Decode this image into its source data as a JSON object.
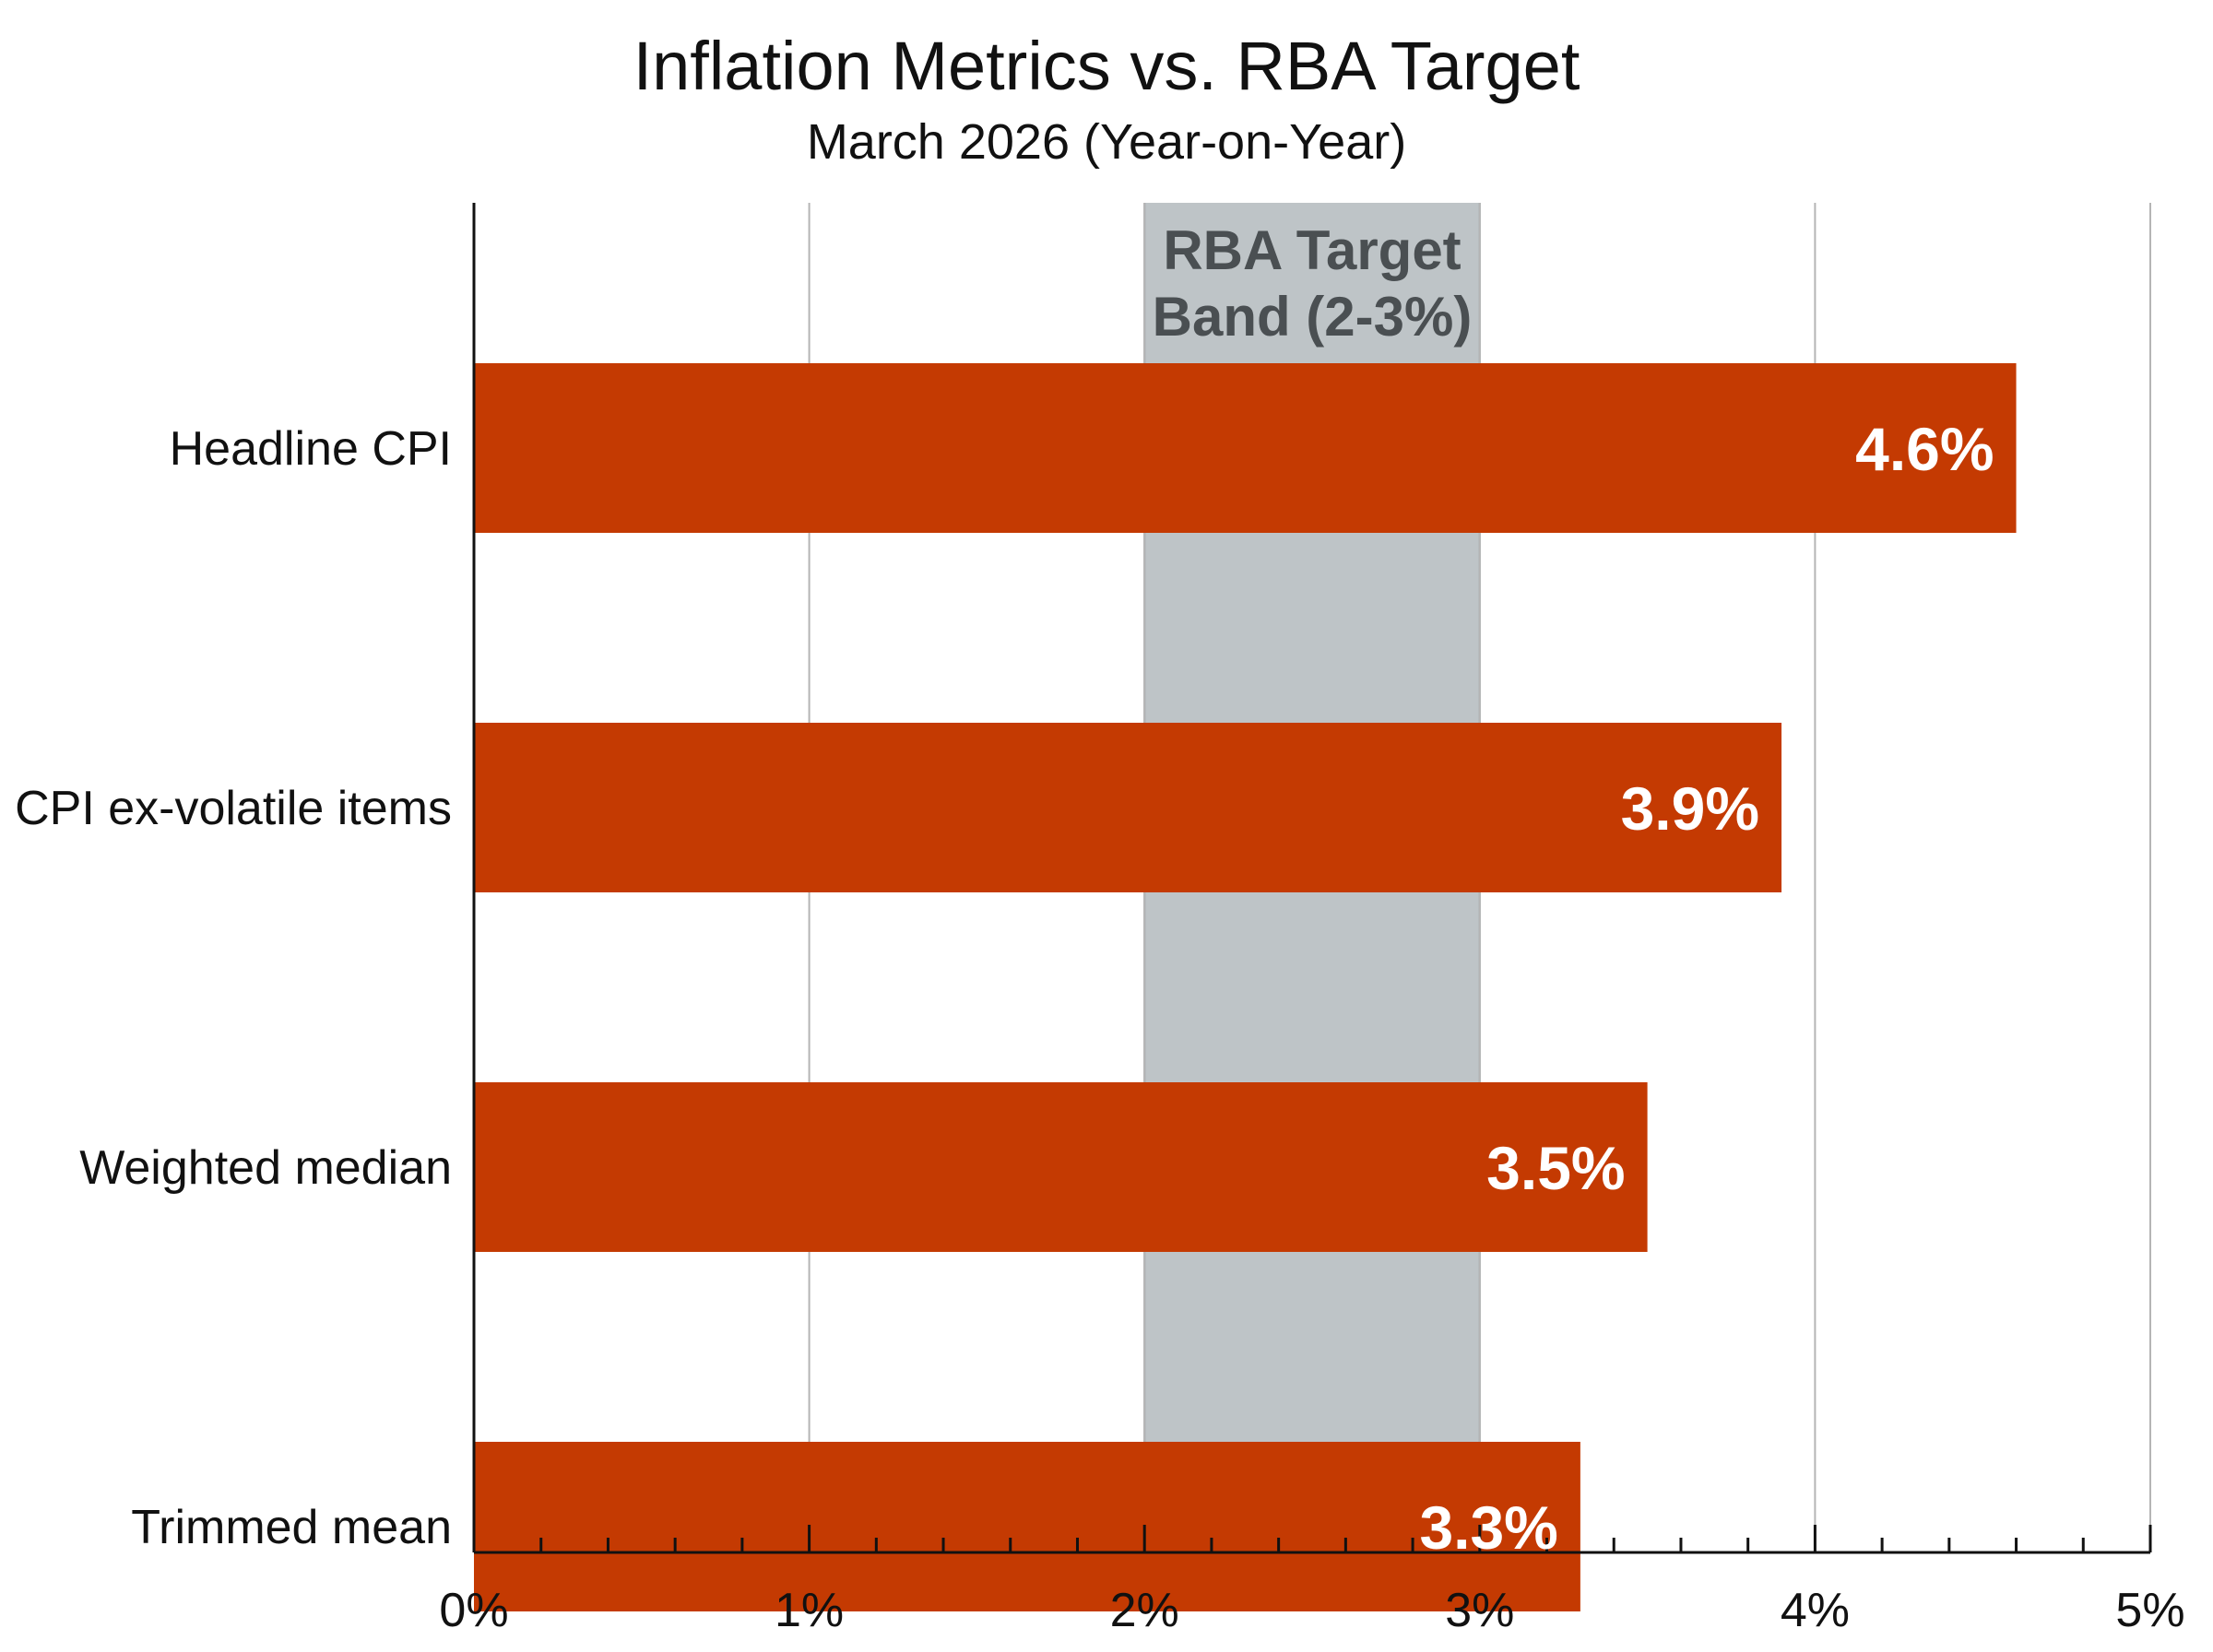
{
  "chart_data": {
    "type": "bar",
    "orientation": "horizontal",
    "title": "Inflation Metrics vs. RBA Target",
    "subtitle": "March 2026 (Year-on-Year)",
    "categories": [
      "Headline CPI",
      "CPI ex-volatile items",
      "Weighted median",
      "Trimmed mean"
    ],
    "values": [
      4.6,
      3.9,
      3.5,
      3.3
    ],
    "data_labels": [
      "4.6%",
      "3.9%",
      "3.5%",
      "3.3%"
    ],
    "xlim": [
      0,
      5
    ],
    "x_ticks": [
      0,
      1,
      2,
      3,
      4,
      5
    ],
    "x_tick_labels": [
      "0%",
      "1%",
      "2%",
      "3%",
      "4%",
      "5%"
    ],
    "grid": "vertical",
    "target_band": {
      "from": 2,
      "to": 3,
      "label_line1": "RBA Target",
      "label_line2": "Band (2-3%)"
    },
    "colors": {
      "bar": "#C43A02",
      "band": "#BEC4C7",
      "band_text": "#4A4F52",
      "grid": "#B5B5B5",
      "axis": "#111111",
      "bar_label": "#FFFFFF"
    }
  }
}
